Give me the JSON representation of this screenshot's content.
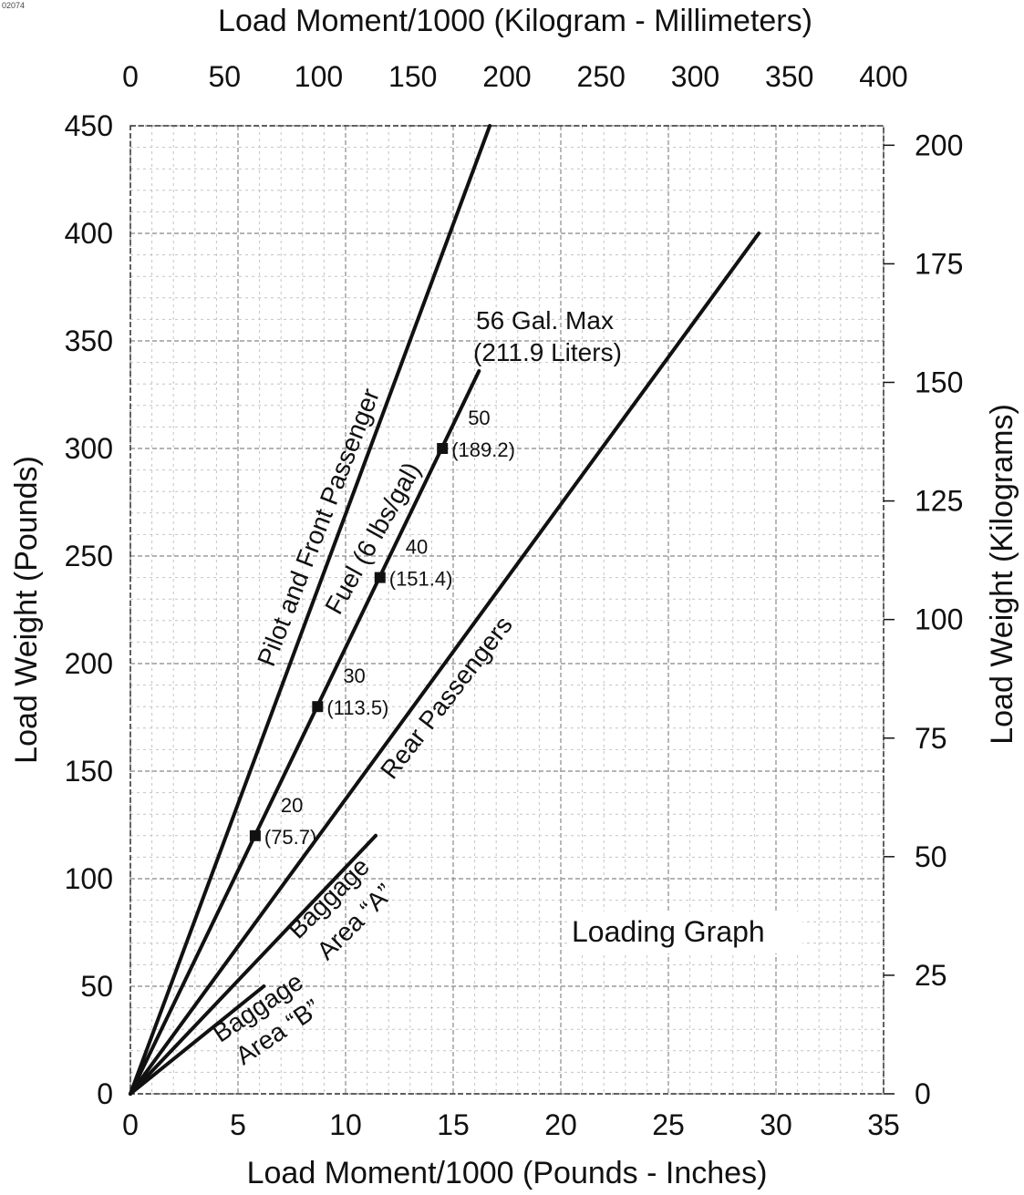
{
  "corner_code": "02074",
  "chart_data": {
    "type": "line",
    "title": "Loading Graph",
    "xlabel": "Load Moment/1000 (Pounds - Inches)",
    "ylabel": "Load Weight (Pounds)",
    "x2label": "Load Moment/1000 (Kilogram - Millimeters)",
    "y2label": "Load Weight (Kilograms)",
    "xlim": [
      0,
      35
    ],
    "ylim": [
      0,
      450
    ],
    "x2lim": [
      0,
      400
    ],
    "y2lim": [
      0,
      204.1
    ],
    "x_ticks": [
      "0",
      "5",
      "10",
      "15",
      "20",
      "25",
      "30",
      "35"
    ],
    "y_ticks": [
      "0",
      "50",
      "100",
      "150",
      "200",
      "250",
      "300",
      "350",
      "400",
      "450"
    ],
    "x2_ticks": [
      "0",
      "50",
      "100",
      "150",
      "200",
      "250",
      "300",
      "350",
      "400"
    ],
    "y2_ticks": [
      "0",
      "25",
      "50",
      "75",
      "100",
      "125",
      "150",
      "175",
      "200"
    ],
    "grid": true,
    "line_color": "#111111",
    "series": [
      {
        "name": "Pilot and Front Passenger",
        "x": [
          0,
          16.7
        ],
        "y": [
          0,
          450
        ]
      },
      {
        "name": "Fuel (6 lbs/gal)",
        "x": [
          0,
          16.2
        ],
        "y": [
          0,
          336
        ]
      },
      {
        "name": "Rear Passengers",
        "x": [
          0,
          29.2
        ],
        "y": [
          0,
          400
        ]
      },
      {
        "name": "Baggage Area “A”",
        "x": [
          0,
          11.4
        ],
        "y": [
          0,
          120
        ]
      },
      {
        "name": "Baggage Area “B”",
        "x": [
          0,
          6.2
        ],
        "y": [
          0,
          50
        ]
      }
    ],
    "fuel_markers": [
      {
        "gal": "20",
        "liters": "(75.7)",
        "x": 5.8,
        "y": 120
      },
      {
        "gal": "30",
        "liters": "(113.5)",
        "x": 8.7,
        "y": 180
      },
      {
        "gal": "40",
        "liters": "(151.4)",
        "x": 11.6,
        "y": 240
      },
      {
        "gal": "50",
        "liters": "(189.2)",
        "x": 14.5,
        "y": 300
      }
    ],
    "annotations": {
      "fuel_max_line1": "56 Gal. Max",
      "fuel_max_line2": "(211.9 Liters)",
      "pilot": "Pilot and Front Passenger",
      "fuel": "Fuel (6 lbs/gal)",
      "rear": "Rear Passengers",
      "baggage_a_1": "Baggage",
      "baggage_a_2": "Area “A”",
      "baggage_b_1": "Baggage",
      "baggage_b_2": "Area “B”"
    }
  }
}
